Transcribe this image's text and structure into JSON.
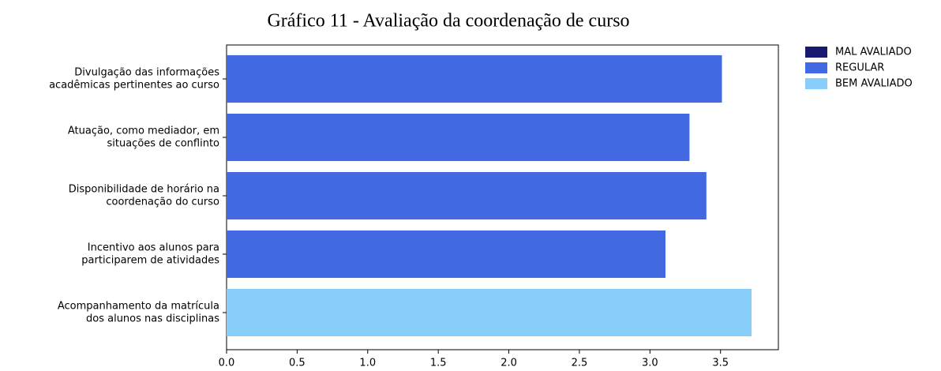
{
  "chart_data": {
    "type": "barh",
    "title": "Gráfico 11 - Avaliação da coordenação de curso",
    "categories": [
      [
        "Divulgação das informações",
        "acadêmicas pertinentes ao curso"
      ],
      [
        "Atuação, como mediador, em",
        "situações de conflinto"
      ],
      [
        "Disponibilidade de horário na",
        "coordenação do curso"
      ],
      [
        "Incentivo aos alunos para",
        "participarem de atividades"
      ],
      [
        "Acompanhamento da matrícula",
        "dos alunos nas disciplinas"
      ]
    ],
    "values": [
      3.51,
      3.28,
      3.4,
      3.11,
      3.72
    ],
    "colors": [
      "#4169e1",
      "#4169e1",
      "#4169e1",
      "#4169e1",
      "#87cefa"
    ],
    "xlim": [
      0,
      3.91
    ],
    "xticks": [
      {
        "value": 0,
        "label": "0.0"
      },
      {
        "value": 0.5,
        "label": "0.5"
      },
      {
        "value": 1,
        "label": "1.0"
      },
      {
        "value": 1.5,
        "label": "1.5"
      },
      {
        "value": 2,
        "label": "2.0"
      },
      {
        "value": 2.5,
        "label": "2.5"
      },
      {
        "value": 3,
        "label": "3.0"
      },
      {
        "value": 3.5,
        "label": "3.5"
      }
    ],
    "legend": [
      {
        "name": "MAL AVALIADO",
        "color": "#191970"
      },
      {
        "name": "REGULAR",
        "color": "#4169e1"
      },
      {
        "name": "BEM AVALIADO",
        "color": "#87cefa"
      }
    ],
    "legend_position": "outside upper right"
  }
}
